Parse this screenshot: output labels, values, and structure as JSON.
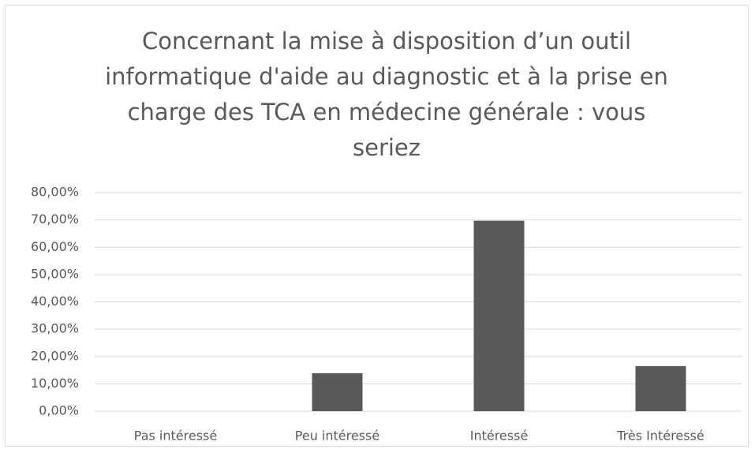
{
  "chart_data": {
    "type": "bar",
    "title": "Concernant la mise à disposition d’un outil informatique d'aide au diagnostic et à la prise en charge des TCA en médecine générale : vous seriez",
    "categories": [
      "Pas intéressé",
      "Peu intéressé",
      "Intéressé",
      "Très Intéressé"
    ],
    "values": [
      0,
      13.9,
      69.7,
      16.5
    ],
    "color": "#595959",
    "ylim": [
      0,
      80
    ],
    "yticks": [
      {
        "value": 0,
        "label": "0,00%"
      },
      {
        "value": 10,
        "label": "10,00%"
      },
      {
        "value": 20,
        "label": "20,00%"
      },
      {
        "value": 30,
        "label": "30,00%"
      },
      {
        "value": 40,
        "label": "40,00%"
      },
      {
        "value": 50,
        "label": "50,00%"
      },
      {
        "value": 60,
        "label": "60,00%"
      },
      {
        "value": 70,
        "label": "70,00%"
      },
      {
        "value": 80,
        "label": "80,00%"
      }
    ],
    "grid": true
  }
}
